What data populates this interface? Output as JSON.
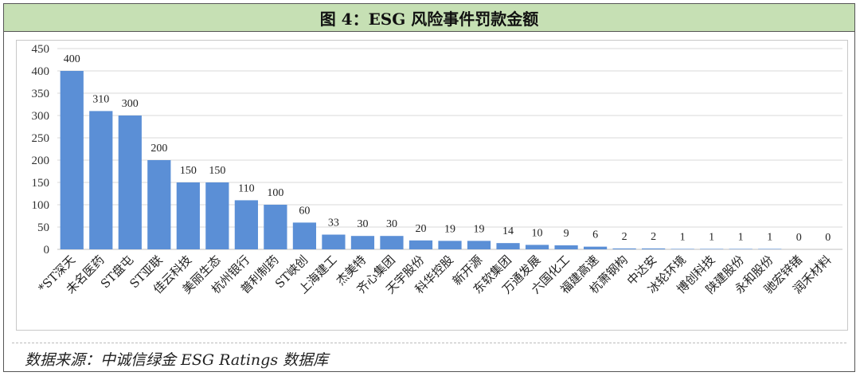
{
  "figure": {
    "title": "图 4：ESG 风险事件罚款金额",
    "source": "数据来源：中诚信绿金 ESG Ratings 数据库"
  },
  "chart_data": {
    "type": "bar",
    "title": "",
    "xlabel": "",
    "ylabel": "",
    "ylim": [
      0,
      450
    ],
    "yticks": [
      0,
      50,
      100,
      150,
      200,
      250,
      300,
      350,
      400,
      450
    ],
    "grid": true,
    "bar_color": "#5b8fd6",
    "categories": [
      "*ST深天",
      "未名医药",
      "ST盘屯",
      "ST亚联",
      "佳云科技",
      "美丽生态",
      "杭州银行",
      "普利制药",
      "ST峡创",
      "上海建工",
      "杰美特",
      "齐心集团",
      "天宇股份",
      "科华控股",
      "新开源",
      "东软集团",
      "万通发展",
      "六国化工",
      "福建高速",
      "杭萧钢构",
      "中达安",
      "冰轮环境",
      "博创科技",
      "陕建股份",
      "永和股份",
      "驰宏锌锗",
      "润禾材料"
    ],
    "values": [
      400,
      310,
      300,
      200,
      150,
      150,
      110,
      100,
      60,
      33,
      30,
      30,
      20,
      19,
      19,
      14,
      10,
      9,
      6,
      2,
      2,
      1,
      1,
      1,
      1,
      0,
      0
    ]
  }
}
